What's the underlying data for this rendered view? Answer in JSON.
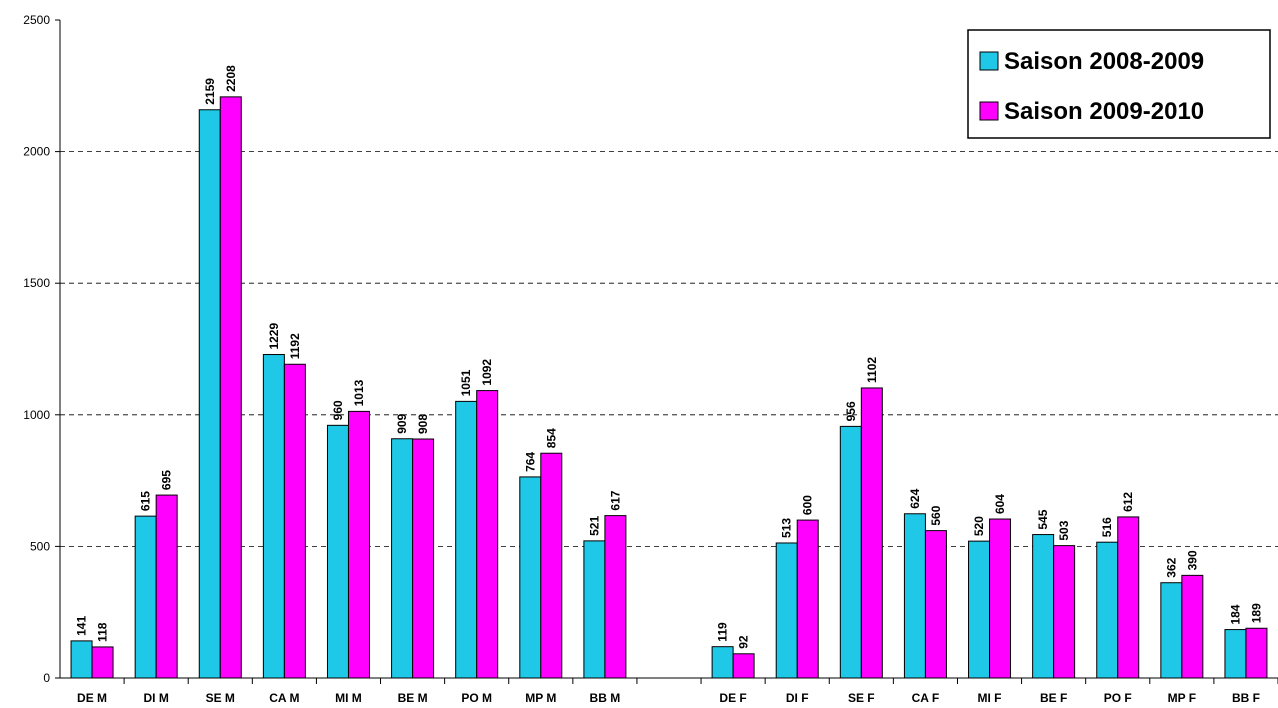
{
  "chart_data": {
    "type": "bar",
    "categories": [
      "DE M",
      "DI M",
      "SE M",
      "CA M",
      "MI M",
      "BE M",
      "PO M",
      "MP M",
      "BB M",
      null,
      "DE F",
      "DI F",
      "SE F",
      "CA F",
      "MI F",
      "BE F",
      "PO F",
      "MP F",
      "BB F"
    ],
    "series": [
      {
        "name": "Saison 2008-2009",
        "color": "#1ec8e6",
        "values": [
          141,
          615,
          2159,
          1229,
          960,
          909,
          1051,
          764,
          521,
          null,
          119,
          513,
          956,
          624,
          520,
          545,
          516,
          362,
          184
        ]
      },
      {
        "name": "Saison 2009-2010",
        "color": "#ff00ff",
        "values": [
          118,
          695,
          2208,
          1192,
          1013,
          908,
          1092,
          854,
          617,
          null,
          92,
          600,
          1102,
          560,
          604,
          503,
          612,
          390,
          189
        ]
      }
    ],
    "ylim": [
      0,
      2500
    ],
    "yticks": [
      0,
      500,
      1000,
      1500,
      2000,
      2500
    ],
    "grid": true,
    "legend": "top-right"
  }
}
